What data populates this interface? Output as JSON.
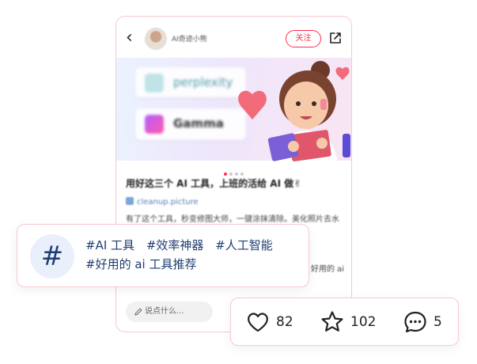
{
  "post": {
    "author": "AI奇迹小熊",
    "follow_label": "关注",
    "banner_tiles": [
      "perplexity",
      "Gamma"
    ],
    "title": "用好这三个 AI 工具，上班的活给 AI 做✌",
    "link": "cleanup.picture",
    "body": "有了这个工具，秒变修图大师，一键涂抹清除。美化照片去水印，老照片修复，模糊照片一键",
    "body_tail": "好用的 ai",
    "comment_placeholder": "说点什么..."
  },
  "tags_card": {
    "symbol": "#",
    "tags": [
      "#AI 工具",
      "#效率神器",
      "#人工智能",
      "#好用的 ai 工具推荐"
    ]
  },
  "stats": {
    "likes": "82",
    "favorites": "102",
    "comments": "5"
  },
  "colors": {
    "accent": "#ff2e4d",
    "tag_text": "#1f3d72",
    "card_border": "#f6c9cf"
  }
}
